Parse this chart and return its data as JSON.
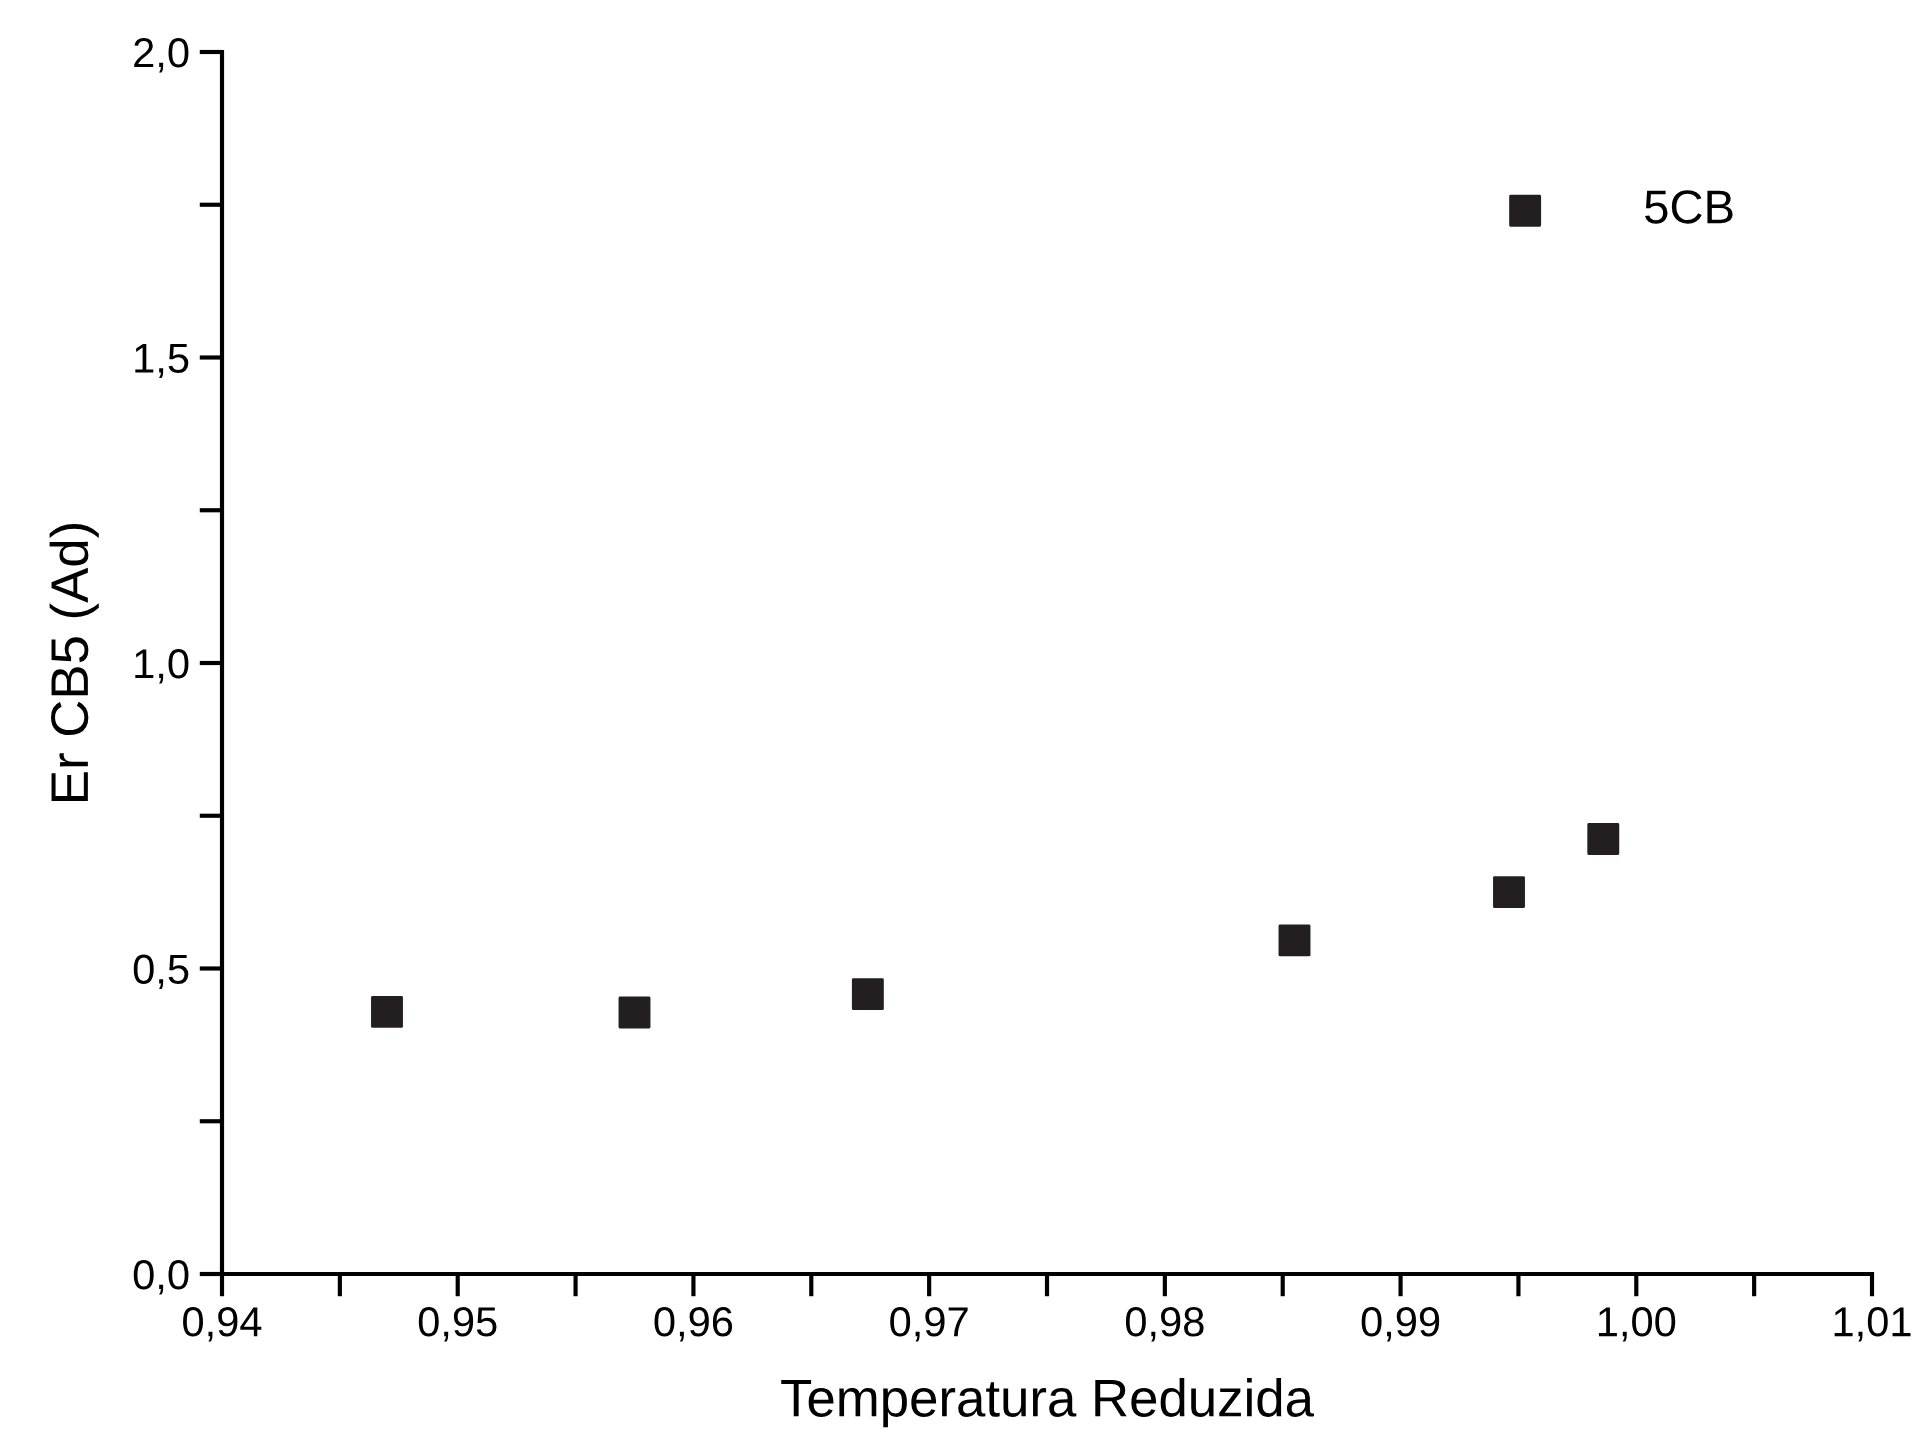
{
  "chart_data": {
    "type": "scatter",
    "xlabel": "Temperatura Reduzida",
    "ylabel": "Er CB5 (Ad)",
    "series": [
      {
        "name": "5CB",
        "color": "#231f20",
        "marker": "square",
        "x": [
          0.947,
          0.9575,
          0.9674,
          0.9855,
          0.9946,
          0.9986
        ],
        "values": [
          0.429,
          0.428,
          0.458,
          0.546,
          0.625,
          0.712
        ]
      }
    ],
    "xlim": [
      0.94,
      1.01
    ],
    "xticks": [
      {
        "value": 0.94,
        "label": "0,94"
      },
      {
        "value": 0.945,
        "label": null
      },
      {
        "value": 0.95,
        "label": "0,95"
      },
      {
        "value": 0.955,
        "label": null
      },
      {
        "value": 0.96,
        "label": "0,96"
      },
      {
        "value": 0.965,
        "label": null
      },
      {
        "value": 0.97,
        "label": "0,97"
      },
      {
        "value": 0.975,
        "label": null
      },
      {
        "value": 0.98,
        "label": "0,98"
      },
      {
        "value": 0.985,
        "label": null
      },
      {
        "value": 0.99,
        "label": "0,99"
      },
      {
        "value": 0.995,
        "label": null
      },
      {
        "value": 1.0,
        "label": "1,00"
      },
      {
        "value": 1.005,
        "label": null
      },
      {
        "value": 1.01,
        "label": "1,01"
      }
    ],
    "ylim": [
      0,
      2
    ],
    "yticks": [
      {
        "value": 0,
        "label": "0,0"
      },
      {
        "value": 0.25,
        "label": null
      },
      {
        "value": 0.5,
        "label": "0,5"
      },
      {
        "value": 0.75,
        "label": null
      },
      {
        "value": 1.0,
        "label": "1,0"
      },
      {
        "value": 1.25,
        "label": null
      },
      {
        "value": 1.5,
        "label": "1,5"
      },
      {
        "value": 1.75,
        "label": null
      },
      {
        "value": 2.0,
        "label": "2,0"
      }
    ],
    "grid": false,
    "legend": "top right"
  }
}
